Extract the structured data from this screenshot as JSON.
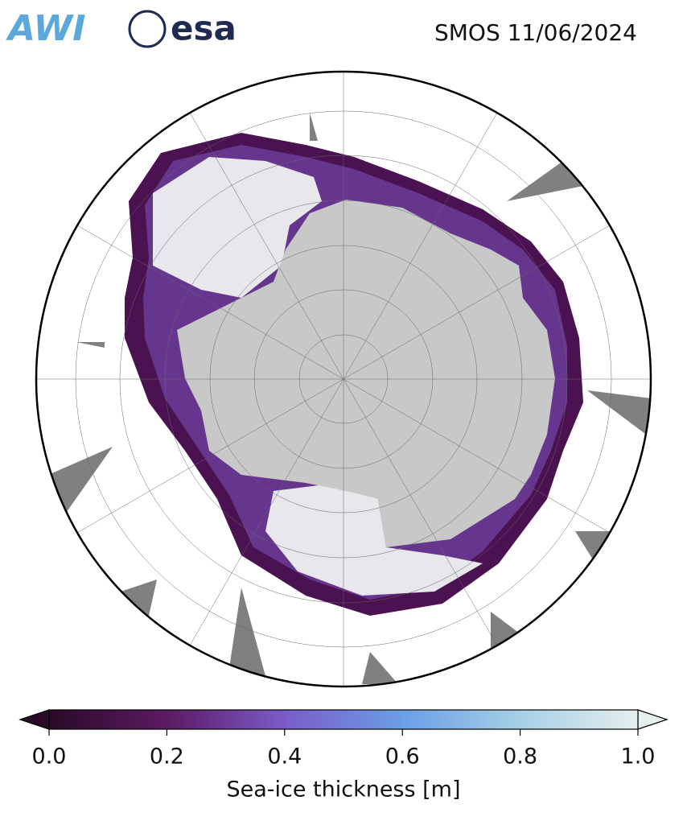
{
  "header": {
    "logos": [
      "AWI",
      "esa"
    ],
    "title": "SMOS 11/06/2024"
  },
  "colorbar": {
    "label": "Sea-ice thickness [m]",
    "lim": [
      0,
      1
    ],
    "colors": [
      "#2a0a28",
      "#5c1a62",
      "#7a5cc8",
      "#6a9ee6",
      "#a6d0e6",
      "#e6eeee"
    ],
    "ticks": [
      {
        "value": 0,
        "label": "0.0"
      },
      {
        "value": 0.2,
        "label": "0.2"
      },
      {
        "value": 0.4,
        "label": "0.4"
      },
      {
        "value": 0.6,
        "label": "0.6"
      },
      {
        "value": 0.8,
        "label": "0.8"
      },
      {
        "value": 1,
        "label": "1.0"
      }
    ]
  }
}
